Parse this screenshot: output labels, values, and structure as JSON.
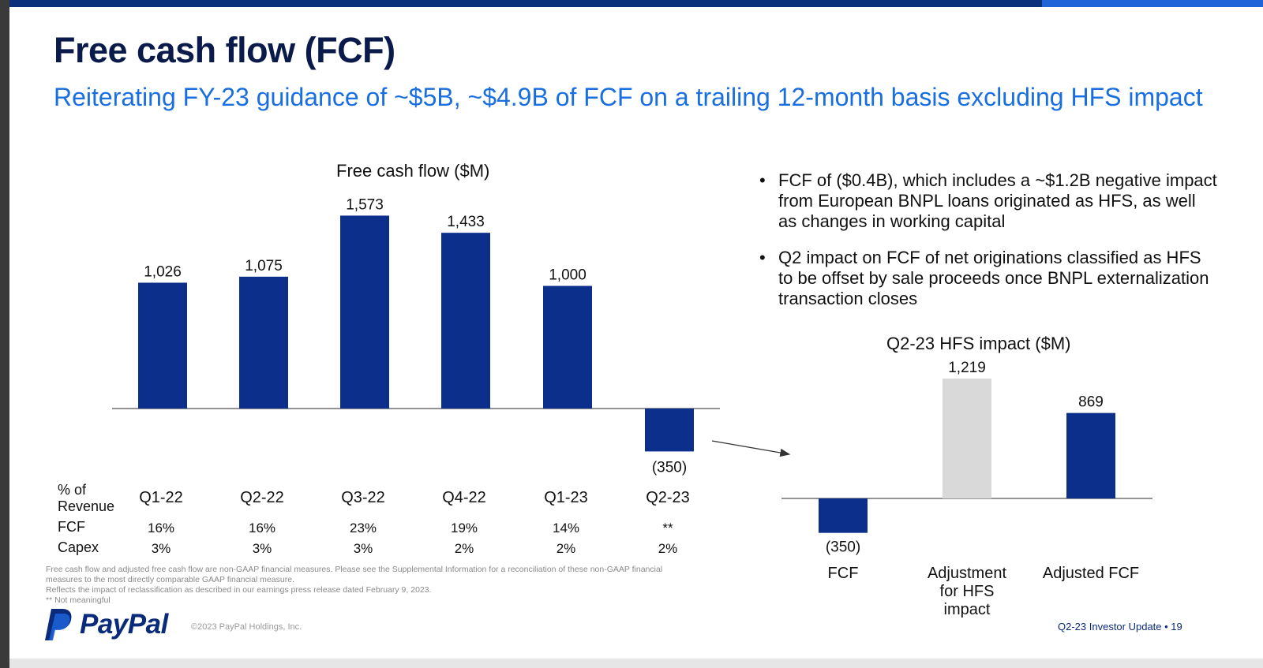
{
  "header": {
    "title": "Free cash flow (FCF)",
    "subtitle": "Reiterating FY-23 guidance of ~$5B, ~$4.9B of FCF on a trailing 12-month basis excluding HFS impact"
  },
  "chart_data": [
    {
      "type": "bar",
      "title": "Free cash flow ($M)",
      "categories": [
        "Q1-22",
        "Q2-22",
        "Q3-22",
        "Q4-22",
        "Q1-23",
        "Q2-23"
      ],
      "values": [
        1026,
        1075,
        1573,
        1433,
        1000,
        -350
      ],
      "value_labels": [
        "1,026",
        "1,075",
        "1,573",
        "1,433",
        "1,000",
        "(350)"
      ],
      "bar_color": "#0b2f8a",
      "grid": false
    },
    {
      "type": "bar",
      "title": "Q2-23 HFS impact ($M)",
      "categories": [
        "FCF",
        "Adjustment for HFS impact",
        "Adjusted FCF"
      ],
      "category_lines": [
        [
          "FCF"
        ],
        [
          "Adjustment",
          "for HFS",
          "impact"
        ],
        [
          "Adjusted FCF"
        ]
      ],
      "values": [
        -350,
        1219,
        869
      ],
      "value_labels": [
        "(350)",
        "1,219",
        "869"
      ],
      "bar_colors": [
        "#0b2f8a",
        "#d9d9d9",
        "#0b2f8a"
      ],
      "grid": false
    }
  ],
  "revenue_table": {
    "header": [
      "% of",
      "Revenue"
    ],
    "rows": [
      {
        "label": "FCF",
        "values": [
          "16%",
          "16%",
          "23%",
          "19%",
          "14%",
          "**"
        ]
      },
      {
        "label": "Capex",
        "values": [
          "3%",
          "3%",
          "3%",
          "2%",
          "2%",
          "2%"
        ]
      }
    ]
  },
  "bullets": [
    "FCF of ($0.4B), which includes a ~$1.2B negative impact from European BNPL loans originated as HFS, as well as changes in working capital",
    "Q2 impact on FCF of net originations classified as HFS to be offset by sale proceeds once BNPL externalization transaction closes"
  ],
  "footnotes": [
    "Free cash flow and adjusted free cash flow are non-GAAP financial measures. Please see the Supplemental Information for a reconciliation of these non-GAAP financial",
    "measures to the most directly comparable GAAP financial measure.",
    "Reflects the impact of reclassification as described in our earnings press release dated February 9, 2023.",
    "** Not meaningful"
  ],
  "footer": {
    "logo": "PayPal",
    "copyright": "©2023 PayPal Holdings, Inc.",
    "right": "Q2-23 Investor Update  •  19"
  },
  "colors": {
    "primary_navy": "#0b2f8a",
    "accent_blue": "#1a6fe0",
    "light_gray_bar": "#d9d9d9",
    "title_color": "#0a1a4a"
  }
}
